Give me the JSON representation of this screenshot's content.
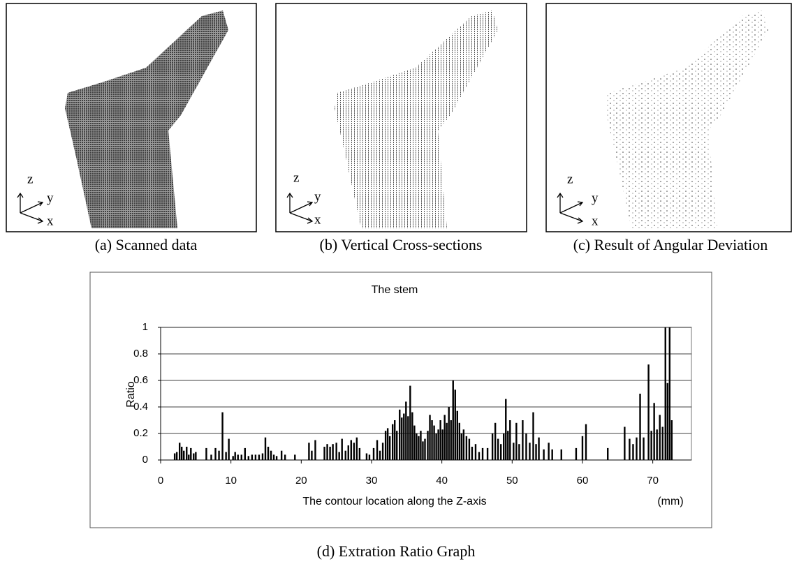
{
  "panels": [
    {
      "caption": "(a) Scanned data",
      "axis_labels": [
        "z",
        "y",
        "x"
      ]
    },
    {
      "caption": "(b) Vertical Cross-sections",
      "axis_labels": [
        "z",
        "y",
        "x"
      ]
    },
    {
      "caption": "(c) Result of Angular Deviation",
      "axis_labels": [
        "z",
        "y",
        "x"
      ]
    }
  ],
  "chart_data": {
    "type": "bar",
    "title": "The stem",
    "caption": "(d) Extration Ratio Graph",
    "x_label": "The contour location along the Z-axis",
    "x_unit": "(mm)",
    "y_label": "Ratio",
    "color": "#000000",
    "grid": true,
    "xlim": [
      0,
      75.5
    ],
    "xticks": [
      0,
      10,
      20,
      30,
      40,
      50,
      60,
      70
    ],
    "ylim": [
      0,
      1
    ],
    "yticks": [
      0,
      0.2,
      0.4,
      0.6,
      0.8,
      1
    ],
    "x": [
      2,
      2.3,
      2.7,
      3,
      3.3,
      3.7,
      4,
      4.3,
      4.7,
      5,
      6.5,
      7.2,
      7.8,
      8.3,
      8.8,
      9.3,
      9.7,
      10.3,
      10.6,
      11,
      11.5,
      12,
      12.5,
      13,
      13.5,
      14,
      14.5,
      14.9,
      15.3,
      15.7,
      16.1,
      16.5,
      17.2,
      17.7,
      19.1,
      21.1,
      21.5,
      22,
      23.3,
      23.7,
      24.1,
      24.5,
      25,
      25.4,
      25.8,
      26.3,
      26.7,
      27.1,
      27.5,
      27.9,
      28.3,
      29.3,
      29.7,
      30.3,
      30.8,
      31.2,
      31.6,
      32,
      32.3,
      32.6,
      33,
      33.3,
      33.6,
      34,
      34.3,
      34.6,
      34.9,
      35.2,
      35.5,
      35.8,
      36.1,
      36.4,
      36.7,
      37,
      37.3,
      37.6,
      38,
      38.3,
      38.6,
      38.9,
      39.2,
      39.5,
      39.8,
      40.1,
      40.4,
      40.7,
      41,
      41.3,
      41.6,
      41.9,
      42.2,
      42.5,
      42.8,
      43.1,
      43.5,
      43.9,
      44.3,
      44.8,
      45.3,
      45.8,
      46.5,
      47.2,
      47.6,
      48,
      48.4,
      48.8,
      49.1,
      49.4,
      49.7,
      50.2,
      50.6,
      51,
      51.5,
      52,
      52.5,
      53,
      53.4,
      53.8,
      54.5,
      55.2,
      55.7,
      57,
      59.1,
      60,
      60.5,
      63.6,
      66,
      66.7,
      67.2,
      67.7,
      68.2,
      68.7,
      69.4,
      69.8,
      70.2,
      70.6,
      71,
      71.4,
      71.8,
      72.1,
      72.4,
      72.7
    ],
    "values": [
      0.05,
      0.06,
      0.13,
      0.1,
      0.07,
      0.1,
      0.04,
      0.09,
      0.05,
      0.06,
      0.09,
      0.04,
      0.09,
      0.07,
      0.36,
      0.06,
      0.16,
      0.03,
      0.06,
      0.04,
      0.04,
      0.09,
      0.03,
      0.04,
      0.04,
      0.04,
      0.05,
      0.17,
      0.1,
      0.07,
      0.04,
      0.03,
      0.07,
      0.04,
      0.04,
      0.13,
      0.07,
      0.15,
      0.1,
      0.12,
      0.1,
      0.12,
      0.13,
      0.06,
      0.16,
      0.07,
      0.11,
      0.15,
      0.13,
      0.17,
      0.09,
      0.05,
      0.04,
      0.09,
      0.15,
      0.07,
      0.13,
      0.22,
      0.24,
      0.18,
      0.27,
      0.3,
      0.22,
      0.38,
      0.32,
      0.35,
      0.44,
      0.33,
      0.56,
      0.36,
      0.26,
      0.2,
      0.18,
      0.22,
      0.14,
      0.16,
      0.22,
      0.34,
      0.3,
      0.26,
      0.2,
      0.23,
      0.3,
      0.23,
      0.34,
      0.28,
      0.4,
      0.3,
      0.6,
      0.53,
      0.37,
      0.28,
      0.2,
      0.23,
      0.18,
      0.16,
      0.1,
      0.12,
      0.06,
      0.09,
      0.09,
      0.2,
      0.28,
      0.16,
      0.12,
      0.2,
      0.46,
      0.22,
      0.3,
      0.13,
      0.28,
      0.12,
      0.3,
      0.2,
      0.13,
      0.36,
      0.12,
      0.17,
      0.08,
      0.13,
      0.08,
      0.08,
      0.09,
      0.18,
      0.27,
      0.09,
      0.25,
      0.16,
      0.12,
      0.17,
      0.5,
      0.17,
      0.72,
      0.22,
      0.43,
      0.23,
      0.34,
      0.25,
      1,
      0.58,
      1,
      0.3
    ]
  }
}
